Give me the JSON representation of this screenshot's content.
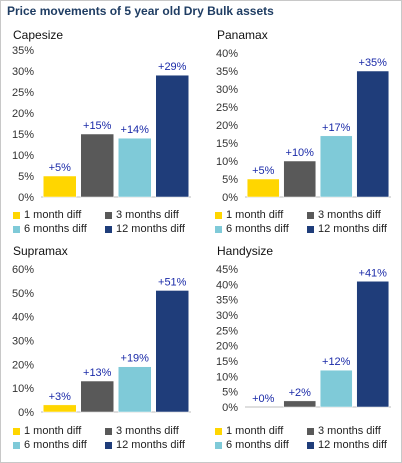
{
  "title": "Price movements of 5 year old Dry Bulk assets",
  "legend": [
    {
      "label": "1 month diff",
      "color": "#ffd600"
    },
    {
      "label": "3 months diff",
      "color": "#595959"
    },
    {
      "label": "6 months diff",
      "color": "#7fcad8"
    },
    {
      "label": "12 months diff",
      "color": "#1f3d7a"
    }
  ],
  "chart_data": [
    {
      "type": "bar",
      "title": "Capesize",
      "categories": [
        "1 month diff",
        "3 months diff",
        "6 months diff",
        "12 months diff"
      ],
      "values": [
        5,
        15,
        14,
        29
      ],
      "data_labels": [
        "+5%",
        "+15%",
        "+14%",
        "+29%"
      ],
      "ylim": [
        0,
        35
      ],
      "yticks": [
        0,
        5,
        10,
        15,
        20,
        25,
        30,
        35
      ],
      "ytick_labels": [
        "0%",
        "5%",
        "10%",
        "15%",
        "20%",
        "25%",
        "30%",
        "35%"
      ],
      "grid": false
    },
    {
      "type": "bar",
      "title": "Panamax",
      "categories": [
        "1 month diff",
        "3 months diff",
        "6 months diff",
        "12 months diff"
      ],
      "values": [
        5,
        10,
        17,
        35
      ],
      "data_labels": [
        "+5%",
        "+10%",
        "+17%",
        "+35%"
      ],
      "ylim": [
        0,
        40
      ],
      "yticks": [
        0,
        5,
        10,
        15,
        20,
        25,
        30,
        35,
        40
      ],
      "ytick_labels": [
        "0%",
        "5%",
        "10%",
        "15%",
        "20%",
        "25%",
        "30%",
        "35%",
        "40%"
      ],
      "grid": false
    },
    {
      "type": "bar",
      "title": "Supramax",
      "categories": [
        "1 month diff",
        "3 months diff",
        "6 months diff",
        "12 months diff"
      ],
      "values": [
        3,
        13,
        19,
        51
      ],
      "data_labels": [
        "+3%",
        "+13%",
        "+19%",
        "+51%"
      ],
      "ylim": [
        0,
        60
      ],
      "yticks": [
        0,
        10,
        20,
        30,
        40,
        50,
        60
      ],
      "ytick_labels": [
        "0%",
        "10%",
        "20%",
        "30%",
        "40%",
        "50%",
        "60%"
      ],
      "grid": false
    },
    {
      "type": "bar",
      "title": "Handysize",
      "categories": [
        "1 month diff",
        "3 months diff",
        "6 months diff",
        "12 months diff"
      ],
      "values": [
        0,
        2,
        12,
        41
      ],
      "data_labels": [
        "+0%",
        "+2%",
        "+12%",
        "+41%"
      ],
      "ylim": [
        0,
        45
      ],
      "yticks": [
        0,
        5,
        10,
        15,
        20,
        25,
        30,
        35,
        40,
        45
      ],
      "ytick_labels": [
        "0%",
        "5%",
        "10%",
        "15%",
        "20%",
        "25%",
        "30%",
        "35%",
        "40%",
        "45%"
      ],
      "grid": false
    }
  ]
}
